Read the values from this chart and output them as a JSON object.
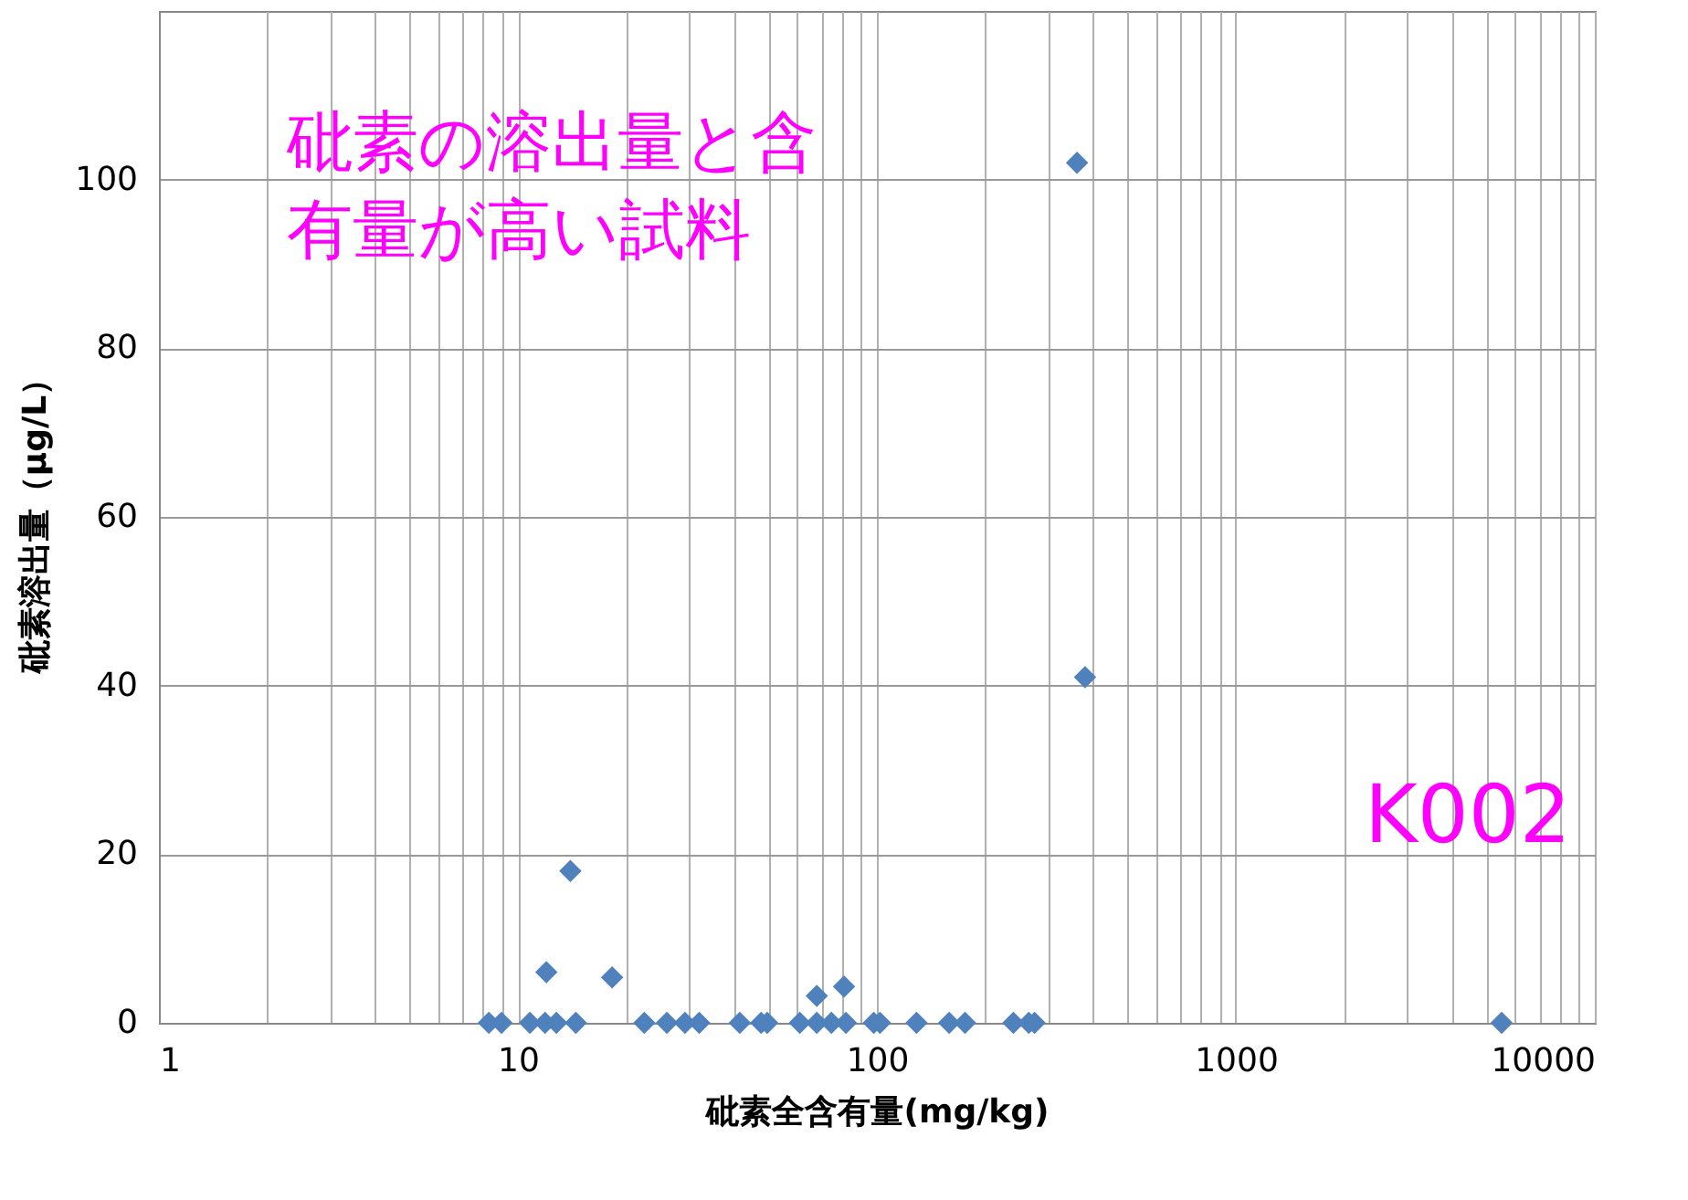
{
  "chart_data": {
    "type": "scatter",
    "xlabel": "砒素全含有量(mg/kg)",
    "ylabel": "砒素溶出量（μg/L）",
    "log": "x",
    "grid": true,
    "marker": "diamond",
    "xlim": [
      1,
      10000
    ],
    "ylim": [
      0,
      120
    ],
    "xticks": [
      1,
      {
        "value": 2,
        "label": null
      },
      {
        "value": 3,
        "label": null
      },
      {
        "value": 4,
        "label": null
      },
      {
        "value": 5,
        "label": null
      },
      {
        "value": 6,
        "label": null
      },
      {
        "value": 7,
        "label": null
      },
      {
        "value": 8,
        "label": null
      },
      {
        "value": 9,
        "label": null
      },
      10,
      {
        "value": 20,
        "label": null
      },
      {
        "value": 30,
        "label": null
      },
      {
        "value": 40,
        "label": null
      },
      {
        "value": 50,
        "label": null
      },
      {
        "value": 60,
        "label": null
      },
      {
        "value": 70,
        "label": null
      },
      {
        "value": 80,
        "label": null
      },
      {
        "value": 90,
        "label": null
      },
      100,
      {
        "value": 200,
        "label": null
      },
      {
        "value": 300,
        "label": null
      },
      {
        "value": 400,
        "label": null
      },
      {
        "value": 500,
        "label": null
      },
      {
        "value": 600,
        "label": null
      },
      {
        "value": 700,
        "label": null
      },
      {
        "value": 800,
        "label": null
      },
      {
        "value": 900,
        "label": null
      },
      1000,
      {
        "value": 2000,
        "label": null
      },
      {
        "value": 3000,
        "label": null
      },
      {
        "value": 4000,
        "label": null
      },
      {
        "value": 5000,
        "label": null
      },
      {
        "value": 6000,
        "label": null
      },
      {
        "value": 7000,
        "label": null
      },
      {
        "value": 8000,
        "label": null
      },
      {
        "value": 9000,
        "label": null
      },
      10000
    ],
    "yticks": [
      0,
      20,
      40,
      60,
      80,
      100
    ],
    "series": [
      {
        "color": "#4f81bd",
        "x": [
          8.3,
          9.0,
          10.8,
          11.9,
          12.0,
          12.8,
          14.0,
          14.5,
          18.3,
          22.5,
          26,
          29.2,
          32,
          41.5,
          47.6,
          49.5,
          61,
          68,
          68,
          74.7,
          81,
          82,
          98,
          102,
          129,
          159,
          176,
          240,
          265,
          275,
          361,
          380,
          5500
        ],
        "values": [
          0,
          0,
          0,
          0,
          6,
          0,
          18,
          0,
          5.4,
          0,
          0,
          0,
          0,
          0,
          0,
          0,
          0,
          0,
          3.2,
          0,
          4.3,
          0,
          0,
          0,
          0,
          0,
          0,
          0,
          0,
          0,
          102,
          41,
          0
        ]
      }
    ],
    "annotations": [
      "砒素の溶出量と含",
      "有量が高い試料",
      "K002"
    ]
  }
}
